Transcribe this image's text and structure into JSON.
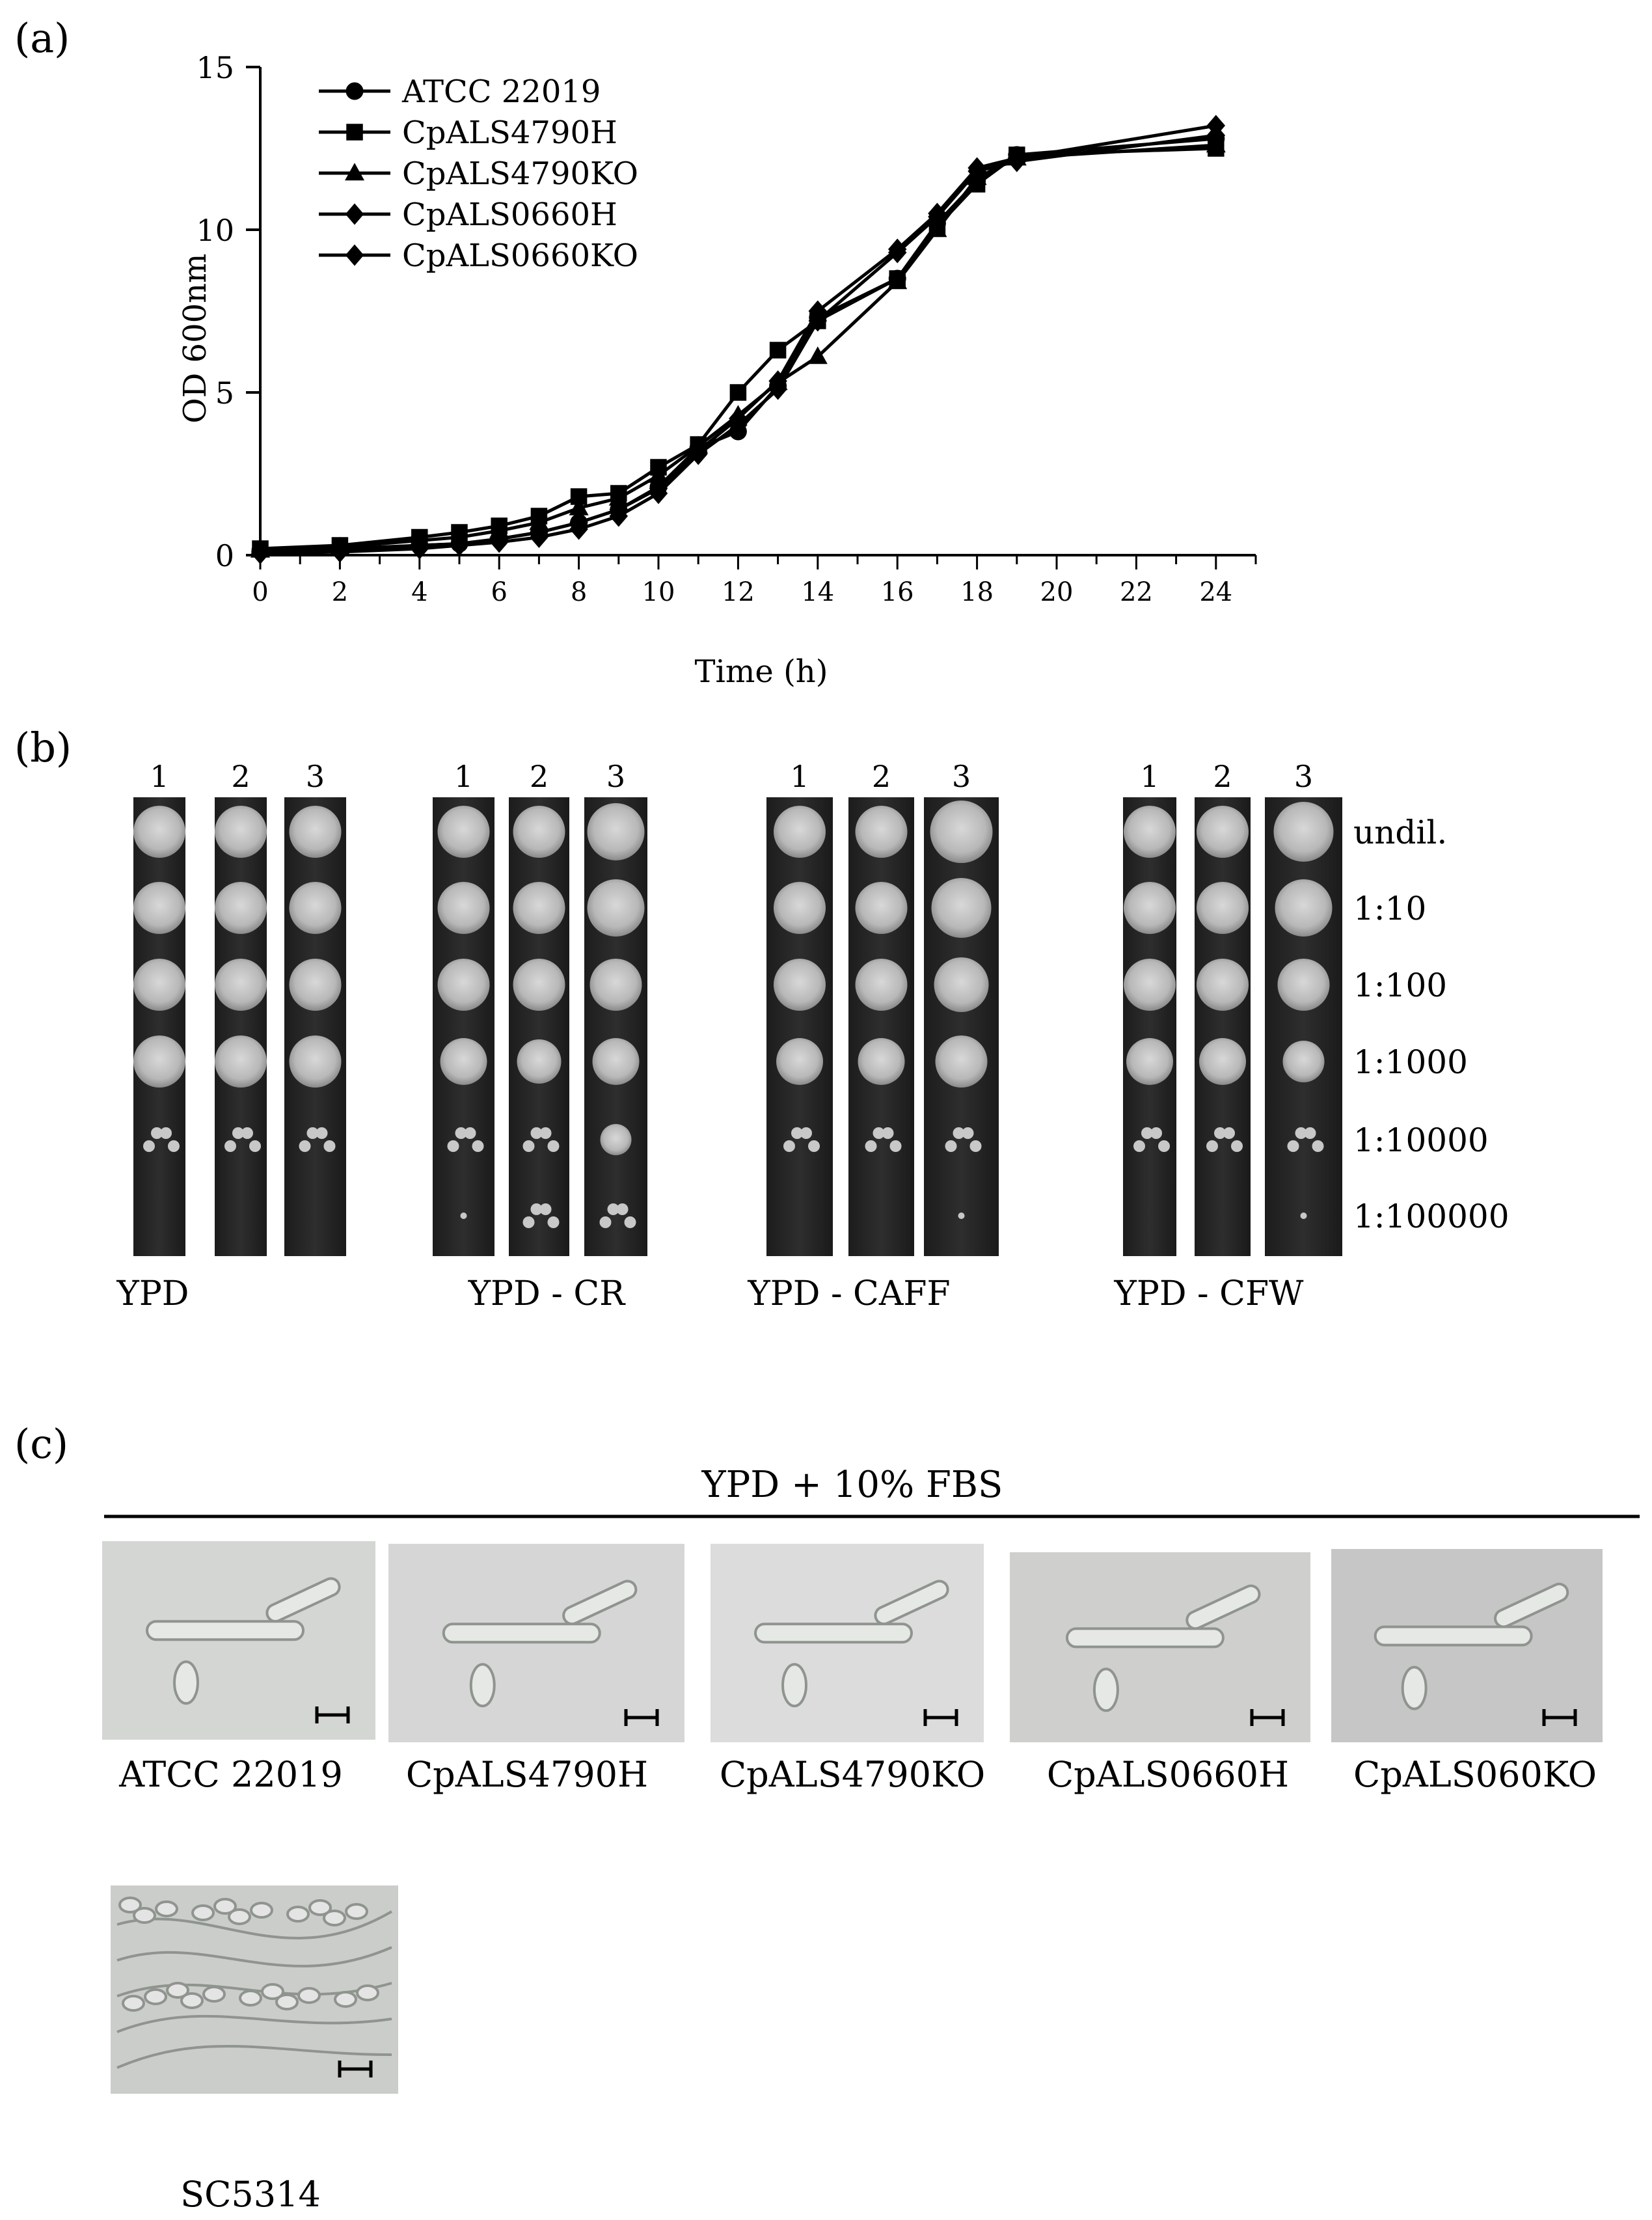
{
  "panels": {
    "a": "(a)",
    "b": "(b)",
    "c": "(c)"
  },
  "chart_data": {
    "type": "line",
    "xlabel": "Time (h)",
    "ylabel": "OD 600nm",
    "xlim": [
      0,
      25
    ],
    "ylim": [
      0,
      15
    ],
    "xticks": [
      0,
      2,
      4,
      6,
      8,
      10,
      12,
      14,
      16,
      18,
      20,
      22,
      24
    ],
    "yticks": [
      0,
      5,
      10,
      15
    ],
    "legend_position": "top-left",
    "series": [
      {
        "name": "ATCC 22019",
        "marker": "circle",
        "x": [
          0,
          2,
          4,
          5,
          6,
          7,
          8,
          9,
          10,
          11,
          12,
          13,
          14,
          16,
          17,
          18,
          19,
          24
        ],
        "y": [
          0.15,
          0.2,
          0.3,
          0.35,
          0.5,
          0.7,
          1.0,
          1.4,
          2.1,
          3.3,
          3.8,
          5.2,
          7.3,
          8.5,
          10.2,
          11.5,
          12.3,
          12.8
        ]
      },
      {
        "name": "CpALS4790H",
        "marker": "square",
        "x": [
          0,
          2,
          4,
          5,
          6,
          7,
          8,
          9,
          10,
          11,
          12,
          13,
          14,
          16,
          17,
          18,
          19,
          24
        ],
        "y": [
          0.2,
          0.3,
          0.55,
          0.7,
          0.9,
          1.2,
          1.8,
          1.9,
          2.7,
          3.4,
          5.0,
          6.3,
          7.2,
          8.5,
          10.1,
          11.4,
          12.3,
          12.5
        ]
      },
      {
        "name": "CpALS4790KO",
        "marker": "triangle",
        "x": [
          0,
          2,
          4,
          5,
          6,
          7,
          8,
          9,
          10,
          11,
          12,
          13,
          14,
          16,
          17,
          18,
          19,
          24
        ],
        "y": [
          0.15,
          0.25,
          0.45,
          0.55,
          0.75,
          1.0,
          1.45,
          1.75,
          2.45,
          3.35,
          4.3,
          5.3,
          6.1,
          8.4,
          10.0,
          11.6,
          12.2,
          12.6
        ]
      },
      {
        "name": "CpALS0660H",
        "marker": "diamond",
        "x": [
          0,
          2,
          4,
          5,
          6,
          7,
          8,
          9,
          10,
          11,
          12,
          13,
          14,
          16,
          17,
          18,
          19,
          24
        ],
        "y": [
          0.1,
          0.15,
          0.3,
          0.35,
          0.5,
          0.7,
          1.0,
          1.4,
          2.05,
          3.2,
          4.2,
          5.35,
          7.5,
          9.4,
          10.5,
          11.9,
          12.2,
          13.2
        ]
      },
      {
        "name": "CpALS0660KO",
        "marker": "diamond",
        "x": [
          0,
          2,
          4,
          5,
          6,
          7,
          8,
          9,
          10,
          11,
          12,
          13,
          14,
          16,
          17,
          18,
          19,
          24
        ],
        "y": [
          0.05,
          0.1,
          0.2,
          0.3,
          0.4,
          0.55,
          0.8,
          1.2,
          1.9,
          3.1,
          4.0,
          5.1,
          7.2,
          9.3,
          10.4,
          11.8,
          12.1,
          12.9
        ]
      }
    ]
  },
  "spot_assay": {
    "dilutions": [
      "undil.",
      "1:10",
      "1:100",
      "1:1000",
      "1:10000",
      "1:100000"
    ],
    "plates": [
      {
        "label": "YPD",
        "columns": [
          "1",
          "2",
          "3"
        ]
      },
      {
        "label": "YPD - CR",
        "columns": [
          "1",
          "2",
          "3"
        ]
      },
      {
        "label": "YPD - CAFF",
        "columns": [
          "1",
          "2",
          "3"
        ]
      },
      {
        "label": "YPD - CFW",
        "columns": [
          "1",
          "2",
          "3"
        ]
      }
    ]
  },
  "microscopy": {
    "condition": "YPD + 10% FBS",
    "strains": [
      "ATCC 22019",
      "CpALS4790H",
      "CpALS4790KO",
      "CpALS0660H",
      "CpALS060KO",
      "SC5314"
    ]
  }
}
